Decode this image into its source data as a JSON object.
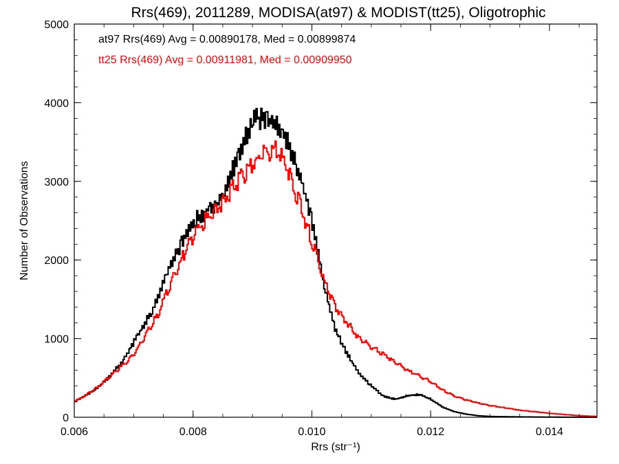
{
  "chart_data": {
    "type": "line",
    "title": "Rrs(469), 2011289, MODISA(at97) & MODIST(tt25), Oligotrophic",
    "xlabel": "Rrs (str⁻¹)",
    "ylabel": "Number of Observations",
    "xlim": [
      0.006,
      0.0148
    ],
    "ylim": [
      0,
      5000
    ],
    "x_ticks": [
      "0.006",
      "0.008",
      "0.010",
      "0.012",
      "0.014"
    ],
    "x_tick_values": [
      0.006,
      0.008,
      0.01,
      0.012,
      0.014
    ],
    "y_ticks": [
      "0",
      "1000",
      "2000",
      "3000",
      "4000",
      "5000"
    ],
    "y_tick_values": [
      0,
      1000,
      2000,
      3000,
      4000,
      5000
    ],
    "annotations": [
      {
        "text": "at97 Rrs(469) Avg = 0.00890178, Med = 0.00899874",
        "color": "#000000"
      },
      {
        "text": "tt25 Rrs(469) Avg = 0.00911981, Med = 0.00909950",
        "color": "#ff0000"
      }
    ],
    "series": [
      {
        "color": "#000000",
        "x": [
          0.006,
          0.0062,
          0.0064,
          0.0066,
          0.0068,
          0.007,
          0.0072,
          0.0074,
          0.0076,
          0.0078,
          0.008,
          0.0082,
          0.0084,
          0.0086,
          0.0088,
          0.009,
          0.0091,
          0.0092,
          0.0093,
          0.0094,
          0.0095,
          0.0096,
          0.0098,
          0.01,
          0.0102,
          0.0104,
          0.0106,
          0.0108,
          0.011,
          0.0112,
          0.0114,
          0.0116,
          0.0118,
          0.012,
          0.0122,
          0.0124,
          0.0126,
          0.0128,
          0.013,
          0.0135,
          0.014,
          0.0148
        ],
        "y": [
          200,
          280,
          380,
          520,
          700,
          950,
          1200,
          1500,
          1900,
          2200,
          2500,
          2600,
          2700,
          3000,
          3400,
          3750,
          3800,
          3800,
          3750,
          3700,
          3650,
          3500,
          3100,
          2500,
          1700,
          1100,
          800,
          550,
          400,
          270,
          230,
          270,
          290,
          230,
          130,
          70,
          40,
          20,
          10,
          5,
          2,
          0
        ]
      },
      {
        "color": "#ff0000",
        "x": [
          0.006,
          0.0062,
          0.0064,
          0.0066,
          0.0068,
          0.007,
          0.0072,
          0.0074,
          0.0076,
          0.0078,
          0.008,
          0.0082,
          0.0084,
          0.0086,
          0.0088,
          0.009,
          0.0092,
          0.0093,
          0.0094,
          0.0095,
          0.0096,
          0.0098,
          0.01,
          0.0102,
          0.0104,
          0.0106,
          0.0108,
          0.011,
          0.0112,
          0.0114,
          0.0116,
          0.0118,
          0.012,
          0.0122,
          0.0124,
          0.0126,
          0.0128,
          0.013,
          0.0135,
          0.014,
          0.0145,
          0.0148
        ],
        "y": [
          200,
          280,
          380,
          520,
          650,
          800,
          1050,
          1300,
          1650,
          2000,
          2300,
          2500,
          2650,
          2850,
          3050,
          3200,
          3350,
          3350,
          3400,
          3300,
          3150,
          2700,
          2250,
          1750,
          1400,
          1200,
          1000,
          900,
          800,
          700,
          600,
          530,
          450,
          350,
          270,
          220,
          180,
          150,
          90,
          50,
          20,
          10
        ]
      }
    ]
  }
}
